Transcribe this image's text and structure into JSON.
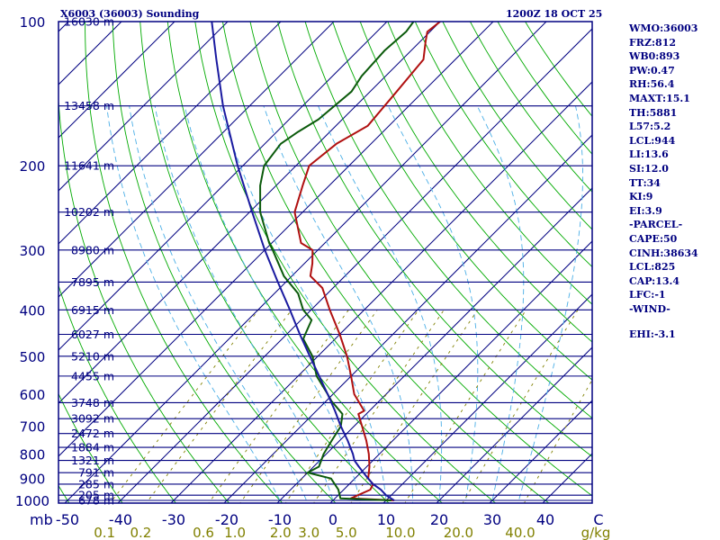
{
  "header": {
    "station": "X6003 (36003) Sounding",
    "time": "1200Z 18 OCT 25"
  },
  "indices": [
    "WMO:36003",
    "FRZ:812",
    "WB0:893",
    "PW:0.47",
    "RH:56.4",
    "MAXT:15.1",
    "TH:5881",
    "L57:5.2",
    "LCL:944",
    "LI:13.6",
    "SI:12.0",
    "TT:34",
    "KI:9",
    "EI:3.9",
    "-PARCEL-",
    "CAPE:50",
    "CINH:38634",
    "LCL:825",
    "CAP:13.4",
    "LFC:-1",
    "-WIND-",
    "",
    "EHI:-3.1"
  ],
  "colors": {
    "border": "#000080",
    "isobar": "#000080",
    "isotherm": "#000080",
    "dry_adiabat": "#00aa00",
    "moist_adiabat": "#4aaee6",
    "mixing_ratio": "#808000",
    "temperature": "#b01010",
    "dewpoint": "#0b5a0b",
    "parcel": "#1a1aa0"
  },
  "chart_data": {
    "type": "skew-t",
    "title": "X6003 (36003) Sounding",
    "pressure_unit": "mb",
    "temp_unit": "C",
    "mixing_ratio_unit": "g/kg",
    "pressure_range": [
      1050,
      100
    ],
    "temp_range_at_bottom": [
      -50,
      50
    ],
    "pressure_ticks": [
      100,
      200,
      300,
      400,
      500,
      600,
      700,
      800,
      900,
      1000
    ],
    "temp_ticks": [
      -50,
      -40,
      -30,
      -20,
      -10,
      0,
      10,
      20,
      30,
      40,
      50
    ],
    "temp_tick_labels": [
      "-50",
      "-40",
      "-30",
      "-20",
      "-10",
      "0",
      "10",
      "20",
      "30",
      "40",
      "C"
    ],
    "axis_corner_label": "mb",
    "mixing_ratio_labels": [
      {
        "value": 0.1,
        "label": "0.1"
      },
      {
        "value": 0.2,
        "label": "0.2"
      },
      {
        "value": 0.6,
        "label": "0.6"
      },
      {
        "value": 1.0,
        "label": "1.0"
      },
      {
        "value": 2.0,
        "label": "2.0"
      },
      {
        "value": 3.0,
        "label": "3.0"
      },
      {
        "value": 5.0,
        "label": "5.0"
      },
      {
        "value": 10.0,
        "label": "10.0"
      },
      {
        "value": 20.0,
        "label": "20.0"
      },
      {
        "value": 40.0,
        "label": "40.0"
      }
    ],
    "height_levels": [
      {
        "p": 1000,
        "label": "678 m"
      },
      {
        "p": 975,
        "label": "205 m"
      },
      {
        "p": 925,
        "label": "285 m"
      },
      {
        "p": 875,
        "label": "791 m"
      },
      {
        "p": 825,
        "label": "1321 m"
      },
      {
        "p": 775,
        "label": "1884 m"
      },
      {
        "p": 725,
        "label": "2472 m"
      },
      {
        "p": 675,
        "label": "3092 m"
      },
      {
        "p": 625,
        "label": "3748 m"
      },
      {
        "p": 550,
        "label": "4455 m"
      },
      {
        "p": 500,
        "label": "5210 m"
      },
      {
        "p": 450,
        "label": "6027 m"
      },
      {
        "p": 400,
        "label": "6915 m"
      },
      {
        "p": 350,
        "label": "7895 m"
      },
      {
        "p": 300,
        "label": "8980 m"
      },
      {
        "p": 250,
        "label": "10202 m"
      },
      {
        "p": 200,
        "label": "11641 m"
      },
      {
        "p": 150,
        "label": "13458 m"
      },
      {
        "p": 100,
        "label": "16030 m"
      }
    ],
    "dry_adiabats_theta_C": [
      -50,
      -40,
      -30,
      -20,
      -10,
      0,
      10,
      20,
      30,
      40,
      50,
      60,
      70,
      80,
      90,
      100,
      110,
      120,
      130,
      140,
      150
    ],
    "moist_adiabats_C": [
      -10,
      -5,
      0,
      5,
      10,
      15,
      20,
      25,
      30,
      35
    ],
    "mixing_ratio_lines": [
      0.1,
      0.2,
      0.6,
      1.0,
      2.0,
      3.0,
      5.0,
      10.0,
      20.0,
      40.0
    ],
    "series": [
      {
        "name": "temperature",
        "points": [
          {
            "p": 1000,
            "t": 11.5
          },
          {
            "p": 990,
            "t": 3.0
          },
          {
            "p": 950,
            "t": 5.0
          },
          {
            "p": 925,
            "t": 4.5
          },
          {
            "p": 900,
            "t": 2.5
          },
          {
            "p": 850,
            "t": 0.5
          },
          {
            "p": 800,
            "t": -2.0
          },
          {
            "p": 750,
            "t": -5.0
          },
          {
            "p": 700,
            "t": -8.5
          },
          {
            "p": 660,
            "t": -11.5
          },
          {
            "p": 650,
            "t": -11.0
          },
          {
            "p": 600,
            "t": -16.0
          },
          {
            "p": 550,
            "t": -20.0
          },
          {
            "p": 500,
            "t": -24.5
          },
          {
            "p": 450,
            "t": -30.0
          },
          {
            "p": 400,
            "t": -36.5
          },
          {
            "p": 360,
            "t": -42.0
          },
          {
            "p": 340,
            "t": -46.5
          },
          {
            "p": 320,
            "t": -48.5
          },
          {
            "p": 300,
            "t": -51.0
          },
          {
            "p": 290,
            "t": -54.5
          },
          {
            "p": 250,
            "t": -61.5
          },
          {
            "p": 220,
            "t": -65.0
          },
          {
            "p": 200,
            "t": -67.5
          },
          {
            "p": 180,
            "t": -66.5
          },
          {
            "p": 165,
            "t": -64.0
          },
          {
            "p": 140,
            "t": -65.0
          },
          {
            "p": 120,
            "t": -66.0
          },
          {
            "p": 110,
            "t": -69.0
          },
          {
            "p": 105,
            "t": -70.5
          },
          {
            "p": 100,
            "t": -70.0
          }
        ]
      },
      {
        "name": "dewpoint",
        "points": [
          {
            "p": 1000,
            "t": 11.0
          },
          {
            "p": 990,
            "t": 1.0
          },
          {
            "p": 950,
            "t": -1.0
          },
          {
            "p": 900,
            "t": -4.5
          },
          {
            "p": 875,
            "t": -10.0
          },
          {
            "p": 850,
            "t": -9.0
          },
          {
            "p": 800,
            "t": -10.5
          },
          {
            "p": 750,
            "t": -11.5
          },
          {
            "p": 700,
            "t": -12.5
          },
          {
            "p": 660,
            "t": -14.5
          },
          {
            "p": 620,
            "t": -19.0
          },
          {
            "p": 600,
            "t": -21.0
          },
          {
            "p": 550,
            "t": -26.5
          },
          {
            "p": 500,
            "t": -31.0
          },
          {
            "p": 460,
            "t": -36.0
          },
          {
            "p": 450,
            "t": -36.5
          },
          {
            "p": 420,
            "t": -38.0
          },
          {
            "p": 400,
            "t": -41.5
          },
          {
            "p": 370,
            "t": -45.5
          },
          {
            "p": 340,
            "t": -51.5
          },
          {
            "p": 300,
            "t": -58.5
          },
          {
            "p": 290,
            "t": -60.5
          },
          {
            "p": 250,
            "t": -68.0
          },
          {
            "p": 220,
            "t": -73.0
          },
          {
            "p": 200,
            "t": -76.0
          },
          {
            "p": 180,
            "t": -77.0
          },
          {
            "p": 170,
            "t": -76.0
          },
          {
            "p": 160,
            "t": -74.5
          },
          {
            "p": 140,
            "t": -73.5
          },
          {
            "p": 130,
            "t": -74.5
          },
          {
            "p": 115,
            "t": -75.0
          },
          {
            "p": 105,
            "t": -74.5
          },
          {
            "p": 100,
            "t": -75.0
          }
        ]
      },
      {
        "name": "parcel",
        "points": [
          {
            "p": 1000,
            "t": 11.5
          },
          {
            "p": 975,
            "t": 9.0
          },
          {
            "p": 950,
            "t": 7.0
          },
          {
            "p": 925,
            "t": 4.5
          },
          {
            "p": 900,
            "t": 2.5
          },
          {
            "p": 875,
            "t": 0.5
          },
          {
            "p": 850,
            "t": -1.5
          },
          {
            "p": 825,
            "t": -3.5
          },
          {
            "p": 800,
            "t": -5.0
          },
          {
            "p": 750,
            "t": -8.5
          },
          {
            "p": 700,
            "t": -12.5
          },
          {
            "p": 650,
            "t": -16.5
          },
          {
            "p": 600,
            "t": -21.0
          },
          {
            "p": 550,
            "t": -26.0
          },
          {
            "p": 500,
            "t": -31.5
          },
          {
            "p": 450,
            "t": -37.5
          },
          {
            "p": 400,
            "t": -44.0
          },
          {
            "p": 350,
            "t": -51.5
          },
          {
            "p": 300,
            "t": -60.0
          },
          {
            "p": 250,
            "t": -69.5
          },
          {
            "p": 200,
            "t": -81.0
          },
          {
            "p": 150,
            "t": -95.0
          },
          {
            "p": 120,
            "t": -105.0
          },
          {
            "p": 100,
            "t": -113.0
          }
        ]
      }
    ]
  }
}
